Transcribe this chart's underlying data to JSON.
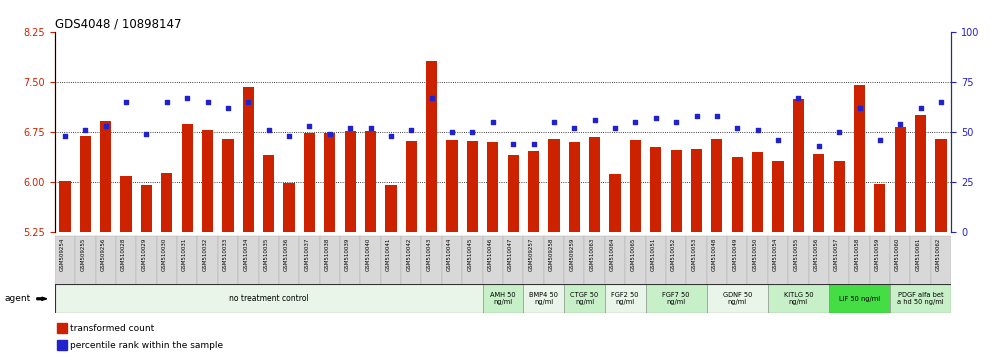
{
  "title": "GDS4048 / 10898147",
  "samples": [
    "GSM509254",
    "GSM509255",
    "GSM509256",
    "GSM510028",
    "GSM510029",
    "GSM510030",
    "GSM510031",
    "GSM510032",
    "GSM510033",
    "GSM510034",
    "GSM510035",
    "GSM510036",
    "GSM510037",
    "GSM510038",
    "GSM510039",
    "GSM510040",
    "GSM510041",
    "GSM510042",
    "GSM510043",
    "GSM510044",
    "GSM510045",
    "GSM510046",
    "GSM510047",
    "GSM509257",
    "GSM509258",
    "GSM509259",
    "GSM510063",
    "GSM510064",
    "GSM510065",
    "GSM510051",
    "GSM510052",
    "GSM510053",
    "GSM510048",
    "GSM510049",
    "GSM510050",
    "GSM510054",
    "GSM510055",
    "GSM510056",
    "GSM510057",
    "GSM510058",
    "GSM510059",
    "GSM510060",
    "GSM510061",
    "GSM510062"
  ],
  "bar_values": [
    6.02,
    6.69,
    6.92,
    6.09,
    5.96,
    6.13,
    6.87,
    6.78,
    6.64,
    7.42,
    6.4,
    5.98,
    6.74,
    6.74,
    6.77,
    6.77,
    5.96,
    6.62,
    7.82,
    6.63,
    6.62,
    6.6,
    6.4,
    6.47,
    6.65,
    6.6,
    6.68,
    6.12,
    6.63,
    6.52,
    6.48,
    6.5,
    6.65,
    6.38,
    6.45,
    6.32,
    7.25,
    6.42,
    6.32,
    7.45,
    5.97,
    6.82,
    7.01,
    6.65
  ],
  "dot_values": [
    48,
    51,
    53,
    65,
    49,
    65,
    67,
    65,
    62,
    65,
    51,
    48,
    53,
    49,
    52,
    52,
    48,
    51,
    67,
    50,
    50,
    55,
    44,
    44,
    55,
    52,
    56,
    52,
    55,
    57,
    55,
    58,
    58,
    52,
    51,
    46,
    67,
    43,
    50,
    62,
    46,
    54,
    62,
    65
  ],
  "ylim_left": [
    5.25,
    8.25
  ],
  "ylim_right": [
    0,
    100
  ],
  "yticks_left": [
    5.25,
    6.0,
    6.75,
    7.5,
    8.25
  ],
  "yticks_right": [
    0,
    25,
    50,
    75,
    100
  ],
  "bar_color": "#cc2200",
  "dot_color": "#2222cc",
  "groups": [
    {
      "label": "no treatment control",
      "start": 0,
      "end": 21,
      "color": "#e8f5e8"
    },
    {
      "label": "AMH 50\nng/ml",
      "start": 21,
      "end": 23,
      "color": "#c8f0c8"
    },
    {
      "label": "BMP4 50\nng/ml",
      "start": 23,
      "end": 25,
      "color": "#e8f5e8"
    },
    {
      "label": "CTGF 50\nng/ml",
      "start": 25,
      "end": 27,
      "color": "#c8f0c8"
    },
    {
      "label": "FGF2 50\nng/ml",
      "start": 27,
      "end": 29,
      "color": "#e8f5e8"
    },
    {
      "label": "FGF7 50\nng/ml",
      "start": 29,
      "end": 32,
      "color": "#c8f0c8"
    },
    {
      "label": "GDNF 50\nng/ml",
      "start": 32,
      "end": 35,
      "color": "#e8f5e8"
    },
    {
      "label": "KITLG 50\nng/ml",
      "start": 35,
      "end": 38,
      "color": "#c8f0c8"
    },
    {
      "label": "LIF 50 ng/ml",
      "start": 38,
      "end": 41,
      "color": "#44dd44"
    },
    {
      "label": "PDGF alfa bet\na hd 50 ng/ml",
      "start": 41,
      "end": 44,
      "color": "#c8f0c8"
    }
  ],
  "agent_label": "agent",
  "legend_bar": "transformed count",
  "legend_dot": "percentile rank within the sample",
  "gridlines": [
    6.0,
    6.75,
    7.5
  ],
  "title_color": "#000000",
  "left_axis_color": "#cc2200",
  "right_axis_color": "#2222cc",
  "bg_color": "#ffffff",
  "plot_area_color": "#ffffff",
  "tick_label_bg": "#d8d8d8"
}
